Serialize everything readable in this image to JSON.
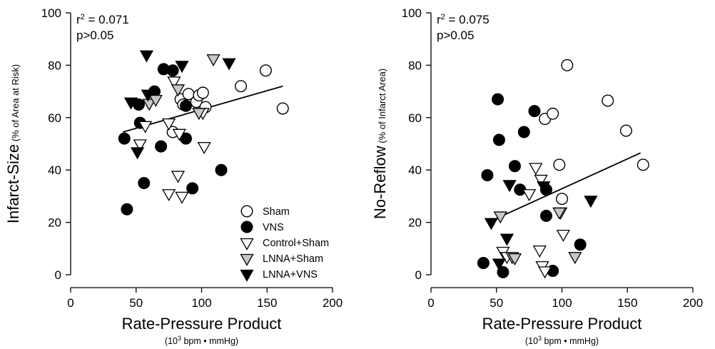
{
  "chart_data": [
    {
      "type": "scatter",
      "xlabel": "Rate-Pressure Product",
      "xlabel_sub_pre": "(10",
      "xlabel_sub_sup": "3",
      "xlabel_sub_post": " bpm • mmHg)",
      "ylabel_main": "Infarct-Size",
      "ylabel_sub": " (% of Area at Risk)",
      "xlim": [
        0,
        200
      ],
      "ylim": [
        0,
        100
      ],
      "xticks": [
        0,
        50,
        100,
        150,
        200
      ],
      "yticks": [
        0,
        20,
        40,
        60,
        80,
        100
      ],
      "grid": false,
      "stat_r_base": "r",
      "stat_r_sup": "2",
      "stat_r_value": " = 0.071",
      "stat_p": "p>0.05",
      "regression": {
        "x": [
          40,
          162
        ],
        "y": [
          54.5,
          72
        ]
      },
      "legend": {
        "placement": "bottom-right",
        "entries": [
          {
            "label": "Sham",
            "marker": "circle",
            "fill": "#ffffff"
          },
          {
            "label": "VNS",
            "marker": "circle",
            "fill": "#000000"
          },
          {
            "label": "Control+Sham",
            "marker": "triangle-down",
            "fill": "#ffffff"
          },
          {
            "label": "LNNA+Sham",
            "marker": "triangle-down",
            "fill": "#c8c8c8"
          },
          {
            "label": "LNNA+VNS",
            "marker": "triangle-down",
            "fill": "#000000"
          }
        ]
      },
      "series": [
        {
          "name": "Sham",
          "marker": "circle",
          "fill": "#ffffff",
          "points": [
            [
              78,
              54.5
            ],
            [
              84,
              67
            ],
            [
              86,
              65
            ],
            [
              90,
              69
            ],
            [
              96,
              66
            ],
            [
              98,
              68.5
            ],
            [
              101,
              69.5
            ],
            [
              103,
              64
            ],
            [
              130,
              72
            ],
            [
              149,
              78
            ],
            [
              162,
              63.5
            ]
          ]
        },
        {
          "name": "VNS",
          "marker": "circle",
          "fill": "#000000",
          "points": [
            [
              41,
              52
            ],
            [
              43,
              25
            ],
            [
              52,
              65
            ],
            [
              53,
              58
            ],
            [
              56,
              35
            ],
            [
              64,
              70
            ],
            [
              69,
              49
            ],
            [
              71,
              78.5
            ],
            [
              78,
              78
            ],
            [
              88,
              52
            ],
            [
              88,
              64.5
            ],
            [
              93,
              33
            ],
            [
              115,
              40
            ]
          ]
        },
        {
          "name": "Control+Sham",
          "marker": "triangle-down",
          "fill": "#ffffff",
          "points": [
            [
              53,
              50
            ],
            [
              57,
              57
            ],
            [
              75,
              58
            ],
            [
              79,
              74
            ],
            [
              82,
              38
            ],
            [
              83,
              54
            ],
            [
              85,
              30
            ],
            [
              101,
              62
            ],
            [
              102,
              49
            ],
            [
              75,
              31
            ]
          ]
        },
        {
          "name": "LNNA+Sham",
          "marker": "triangle-down",
          "fill": "#c8c8c8",
          "points": [
            [
              60,
              65.5
            ],
            [
              65,
              67
            ],
            [
              82,
              71
            ],
            [
              98,
              62
            ],
            [
              109,
              82.5
            ]
          ]
        },
        {
          "name": "LNNA+VNS",
          "marker": "triangle-down",
          "fill": "#000000",
          "points": [
            [
              46,
              66
            ],
            [
              51,
              47
            ],
            [
              58,
              84
            ],
            [
              59,
              69
            ],
            [
              85,
              80
            ],
            [
              121,
              81
            ]
          ]
        }
      ]
    },
    {
      "type": "scatter",
      "xlabel": "Rate-Pressure Product",
      "xlabel_sub_pre": "(10",
      "xlabel_sub_sup": "3",
      "xlabel_sub_post": " bpm • mmHg)",
      "ylabel_main": "No-Reflow",
      "ylabel_sub": " (% of Infarct Area)",
      "xlim": [
        0,
        200
      ],
      "ylim": [
        0,
        100
      ],
      "xticks": [
        0,
        50,
        100,
        150,
        200
      ],
      "yticks": [
        0,
        20,
        40,
        60,
        80,
        100
      ],
      "grid": false,
      "stat_r_base": "r",
      "stat_r_sup": "2",
      "stat_r_value": " = 0.075",
      "stat_p": "p>0.05",
      "regression": {
        "x": [
          50,
          160
        ],
        "y": [
          21.5,
          46.5
        ]
      },
      "series": [
        {
          "name": "Sham",
          "marker": "circle",
          "fill": "#ffffff",
          "points": [
            [
              87,
              59.5
            ],
            [
              93,
              61.5
            ],
            [
              98,
              42
            ],
            [
              100,
              29
            ],
            [
              104,
              80
            ],
            [
              135,
              66.5
            ],
            [
              149,
              55
            ],
            [
              162,
              42
            ]
          ]
        },
        {
          "name": "VNS",
          "marker": "circle",
          "fill": "#000000",
          "points": [
            [
              40,
              4.5
            ],
            [
              43,
              38
            ],
            [
              51,
              67
            ],
            [
              52,
              51.5
            ],
            [
              55,
              1
            ],
            [
              64,
              41.5
            ],
            [
              68,
              32.5
            ],
            [
              71,
              54.5
            ],
            [
              79,
              62.5
            ],
            [
              88,
              32.5
            ],
            [
              88,
              22.5
            ],
            [
              93,
              1.5
            ],
            [
              114,
              11.5
            ]
          ]
        },
        {
          "name": "Control+Sham",
          "marker": "triangle-down",
          "fill": "#ffffff",
          "points": [
            [
              55,
              9
            ],
            [
              58,
              7
            ],
            [
              80,
              41
            ],
            [
              83,
              9.5
            ],
            [
              84,
              36.5
            ],
            [
              85,
              3.5
            ],
            [
              87,
              1.5
            ],
            [
              99,
              24
            ],
            [
              101,
              15.5
            ],
            [
              75,
              31
            ]
          ]
        },
        {
          "name": "LNNA+Sham",
          "marker": "triangle-down",
          "fill": "#c8c8c8",
          "points": [
            [
              53,
              22.5
            ],
            [
              62,
              7
            ],
            [
              64,
              6.5
            ],
            [
              98,
              24
            ],
            [
              110,
              7
            ]
          ]
        },
        {
          "name": "LNNA+VNS",
          "marker": "triangle-down",
          "fill": "#000000",
          "points": [
            [
              46,
              20
            ],
            [
              52,
              4.5
            ],
            [
              58,
              14
            ],
            [
              60,
              34.5
            ],
            [
              86,
              34
            ],
            [
              122,
              28.5
            ]
          ]
        }
      ]
    }
  ]
}
